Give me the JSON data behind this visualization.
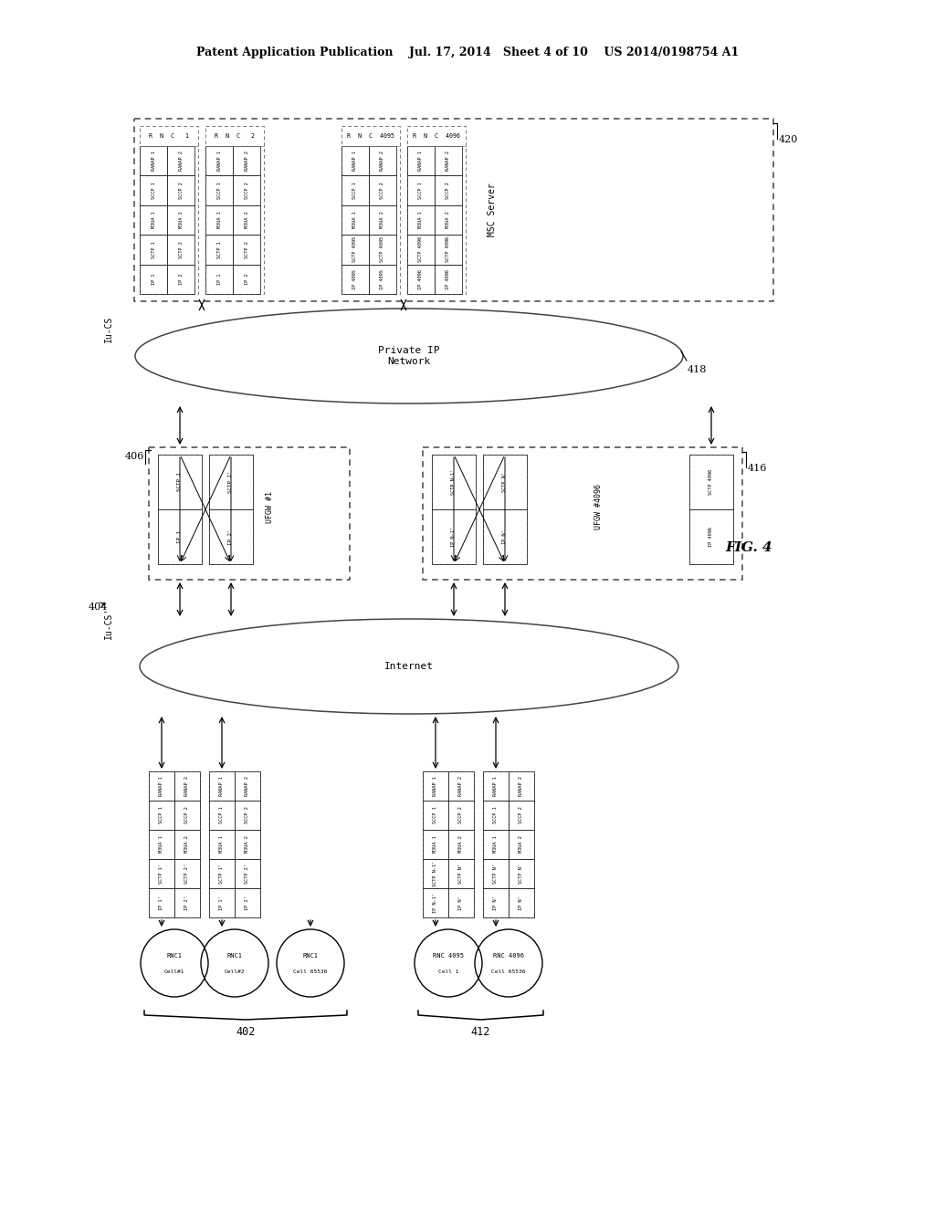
{
  "header": "Patent Application Publication    Jul. 17, 2014   Sheet 4 of 10    US 2014/0198754 A1",
  "fig_label": "FIG. 4",
  "background_color": "#ffffff",
  "msc_label": "MSC Server",
  "priv_net_label": "Private IP\nNetwork",
  "internet_label": "Internet",
  "iu_cs_label": "Iu-CS",
  "iu_cs_prime_label": "Iu-CS'",
  "label_404": "404",
  "label_406": "406",
  "label_412": "412",
  "label_416": "416",
  "label_418": "418",
  "label_420": "420",
  "label_402": "402"
}
